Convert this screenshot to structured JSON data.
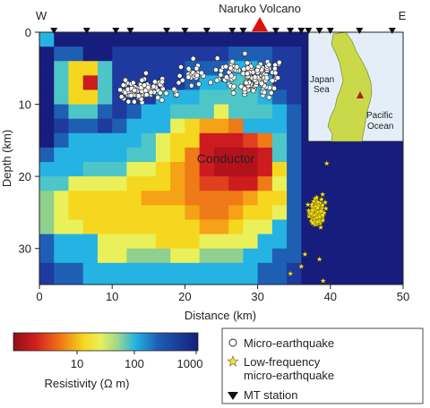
{
  "figure": {
    "volcano_label": "Naruko Volcano",
    "west_label": "W",
    "east_label": "E",
    "conductor_label": "Conductor",
    "xlabel": "Distance (km)",
    "ylabel": "Depth (km)",
    "x_ticks": [
      "0",
      "10",
      "20",
      "30",
      "40",
      "50"
    ],
    "y_ticks": [
      "0",
      "10",
      "20",
      "30"
    ],
    "colorbar": {
      "tick_labels": [
        "10",
        "100",
        "1000"
      ],
      "title": "Resistivity (Ω m)"
    },
    "inset": {
      "sea_label_1": "Japan",
      "sea_label_2": "Sea",
      "ocean_label_1": "Pacific",
      "ocean_label_2": "Ocean"
    },
    "legend": {
      "micro_eq": "Micro-earthquake",
      "lf_eq_1": "Low-frequency",
      "lf_eq_2": "micro-earthquake",
      "mt_station": "MT station"
    }
  },
  "chart_data": {
    "type": "heatmap",
    "x_range_km": [
      0,
      50
    ],
    "y_range_km": [
      0,
      35
    ],
    "resistivity_scale": "log10, 1 to 1000 Ohm m, red = low, blue = high",
    "mt_stations_km": [
      2,
      6.5,
      10.5,
      12.5,
      17.5,
      20,
      23,
      26.5,
      28,
      32.5,
      34.5,
      36,
      37,
      38.5,
      40,
      44,
      48.5
    ],
    "volcano_km": 30.5,
    "colors": {
      "low": "#b3121c",
      "high": "#161d7d",
      "micro_earthquake": "#ffffff",
      "low_frequency_earthquake": "#f6e61a",
      "inset_land": "#c9d94a",
      "inset_sea": "#e4eef8"
    }
  }
}
